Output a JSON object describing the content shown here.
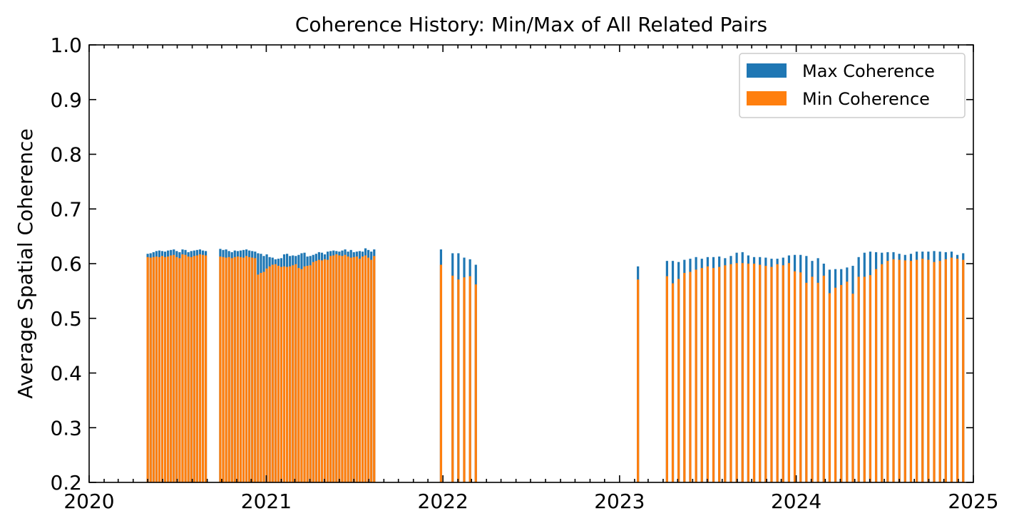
{
  "chart_data": {
    "type": "bar",
    "title": "Coherence History: Min/Max of All Related Pairs",
    "xlabel": "",
    "ylabel": "Average Spatial Coherence",
    "xlim": [
      "2020-01-01",
      "2025-01-01"
    ],
    "ylim": [
      0.2,
      1.0
    ],
    "x_ticks": [
      "2020",
      "2021",
      "2022",
      "2023",
      "2024",
      "2025"
    ],
    "y_ticks": [
      0.2,
      0.3,
      0.4,
      0.5,
      0.6,
      0.7,
      0.8,
      0.9,
      1.0
    ],
    "y_tick_labels": [
      "0.2",
      "0.3",
      "0.4",
      "0.5",
      "0.6",
      "0.7",
      "0.8",
      "0.9",
      "1.0"
    ],
    "grid": false,
    "legend": "top-right",
    "series": [
      {
        "name": "Max Coherence",
        "color": "#1f77b4",
        "values": [
          0.618,
          0.619,
          0.621,
          0.623,
          0.624,
          0.623,
          0.622,
          0.624,
          0.625,
          0.626,
          0.623,
          0.621,
          0.626,
          0.625,
          0.621,
          0.623,
          0.624,
          0.625,
          0.626,
          0.624,
          0.623,
          0.627,
          0.625,
          0.626,
          0.623,
          0.621,
          0.624,
          0.623,
          0.624,
          0.625,
          0.626,
          0.624,
          0.623,
          0.622,
          0.619,
          0.618,
          0.614,
          0.617,
          0.612,
          0.611,
          0.608,
          0.609,
          0.61,
          0.617,
          0.618,
          0.614,
          0.615,
          0.614,
          0.616,
          0.619,
          0.62,
          0.613,
          0.614,
          0.616,
          0.618,
          0.621,
          0.62,
          0.617,
          0.622,
          0.623,
          0.624,
          0.623,
          0.622,
          0.624,
          0.626,
          0.622,
          0.625,
          0.621,
          0.622,
          0.623,
          0.622,
          0.628,
          0.625,
          0.622,
          0.626,
          0.626,
          0.619,
          0.619,
          0.611,
          0.608,
          0.598,
          0.595,
          0.605,
          0.605,
          0.603,
          0.607,
          0.609,
          0.612,
          0.609,
          0.612,
          0.612,
          0.613,
          0.61,
          0.614,
          0.62,
          0.621,
          0.615,
          0.612,
          0.612,
          0.611,
          0.609,
          0.609,
          0.611,
          0.615,
          0.616,
          0.616,
          0.614,
          0.605,
          0.61,
          0.6,
          0.589,
          0.59,
          0.59,
          0.593,
          0.596,
          0.612,
          0.62,
          0.622,
          0.621,
          0.62,
          0.621,
          0.621,
          0.618,
          0.616,
          0.618,
          0.622,
          0.622,
          0.622,
          0.623,
          0.622,
          0.621,
          0.622,
          0.616,
          0.619
        ],
        "dates": [
          "2020-05-01",
          "2020-05-07",
          "2020-05-13",
          "2020-05-19",
          "2020-05-25",
          "2020-05-31",
          "2020-06-06",
          "2020-06-12",
          "2020-06-18",
          "2020-06-24",
          "2020-06-30",
          "2020-07-06",
          "2020-07-12",
          "2020-07-18",
          "2020-07-24",
          "2020-07-30",
          "2020-08-05",
          "2020-08-11",
          "2020-08-17",
          "2020-08-23",
          "2020-08-29",
          "2020-09-28",
          "2020-10-04",
          "2020-10-10",
          "2020-10-16",
          "2020-10-22",
          "2020-10-28",
          "2020-11-03",
          "2020-11-09",
          "2020-11-15",
          "2020-11-21",
          "2020-11-27",
          "2020-12-03",
          "2020-12-09",
          "2020-12-15",
          "2020-12-21",
          "2020-12-27",
          "2021-01-02",
          "2021-01-08",
          "2021-01-14",
          "2021-01-20",
          "2021-01-26",
          "2021-02-01",
          "2021-02-07",
          "2021-02-13",
          "2021-02-19",
          "2021-02-25",
          "2021-03-03",
          "2021-03-09",
          "2021-03-15",
          "2021-03-21",
          "2021-03-27",
          "2021-04-02",
          "2021-04-08",
          "2021-04-14",
          "2021-04-20",
          "2021-04-26",
          "2021-05-02",
          "2021-05-08",
          "2021-05-14",
          "2021-05-20",
          "2021-05-26",
          "2021-06-01",
          "2021-06-07",
          "2021-06-13",
          "2021-06-19",
          "2021-06-25",
          "2021-07-01",
          "2021-07-07",
          "2021-07-13",
          "2021-07-19",
          "2021-07-25",
          "2021-07-31",
          "2021-08-06",
          "2021-08-12",
          "2021-12-28",
          "2022-01-21",
          "2022-02-02",
          "2022-02-14",
          "2022-02-26",
          "2022-03-10",
          "2023-02-08",
          "2023-04-09",
          "2023-04-21",
          "2023-05-03",
          "2023-05-15",
          "2023-05-27",
          "2023-06-08",
          "2023-06-20",
          "2023-07-02",
          "2023-07-14",
          "2023-07-26",
          "2023-08-07",
          "2023-08-19",
          "2023-08-31",
          "2023-09-12",
          "2023-09-24",
          "2023-10-06",
          "2023-10-18",
          "2023-10-30",
          "2023-11-11",
          "2023-11-23",
          "2023-12-05",
          "2023-12-17",
          "2023-12-29",
          "2024-01-10",
          "2024-01-22",
          "2024-02-03",
          "2024-02-15",
          "2024-02-27",
          "2024-03-10",
          "2024-03-22",
          "2024-04-03",
          "2024-04-15",
          "2024-04-27",
          "2024-05-09",
          "2024-05-21",
          "2024-06-02",
          "2024-06-14",
          "2024-06-26",
          "2024-07-08",
          "2024-07-20",
          "2024-08-01",
          "2024-08-13",
          "2024-08-25",
          "2024-09-06",
          "2024-09-18",
          "2024-09-30",
          "2024-10-12",
          "2024-10-24",
          "2024-11-05",
          "2024-11-17",
          "2024-11-29",
          "2024-12-11"
        ]
      },
      {
        "name": "Min Coherence",
        "color": "#ff7f0e",
        "values": [
          0.612,
          0.611,
          0.612,
          0.613,
          0.612,
          0.614,
          0.612,
          0.613,
          0.615,
          0.616,
          0.612,
          0.61,
          0.617,
          0.616,
          0.613,
          0.612,
          0.614,
          0.615,
          0.617,
          0.616,
          0.615,
          0.613,
          0.612,
          0.611,
          0.612,
          0.61,
          0.612,
          0.613,
          0.612,
          0.611,
          0.614,
          0.612,
          0.611,
          0.61,
          0.58,
          0.583,
          0.585,
          0.591,
          0.595,
          0.598,
          0.599,
          0.596,
          0.594,
          0.595,
          0.594,
          0.595,
          0.597,
          0.599,
          0.592,
          0.59,
          0.595,
          0.596,
          0.597,
          0.603,
          0.605,
          0.607,
          0.606,
          0.608,
          0.607,
          0.614,
          0.615,
          0.617,
          0.615,
          0.614,
          0.616,
          0.613,
          0.611,
          0.612,
          0.613,
          0.609,
          0.613,
          0.615,
          0.611,
          0.607,
          0.614,
          0.598,
          0.578,
          0.571,
          0.575,
          0.577,
          0.562,
          0.571,
          0.577,
          0.564,
          0.572,
          0.583,
          0.585,
          0.589,
          0.592,
          0.595,
          0.592,
          0.594,
          0.597,
          0.599,
          0.601,
          0.601,
          0.6,
          0.6,
          0.598,
          0.596,
          0.594,
          0.599,
          0.597,
          0.601,
          0.586,
          0.584,
          0.565,
          0.576,
          0.565,
          0.578,
          0.546,
          0.556,
          0.561,
          0.567,
          0.545,
          0.576,
          0.576,
          0.579,
          0.59,
          0.599,
          0.605,
          0.608,
          0.607,
          0.606,
          0.605,
          0.607,
          0.609,
          0.607,
          0.603,
          0.605,
          0.608,
          0.611,
          0.609,
          0.607
        ]
      }
    ]
  }
}
